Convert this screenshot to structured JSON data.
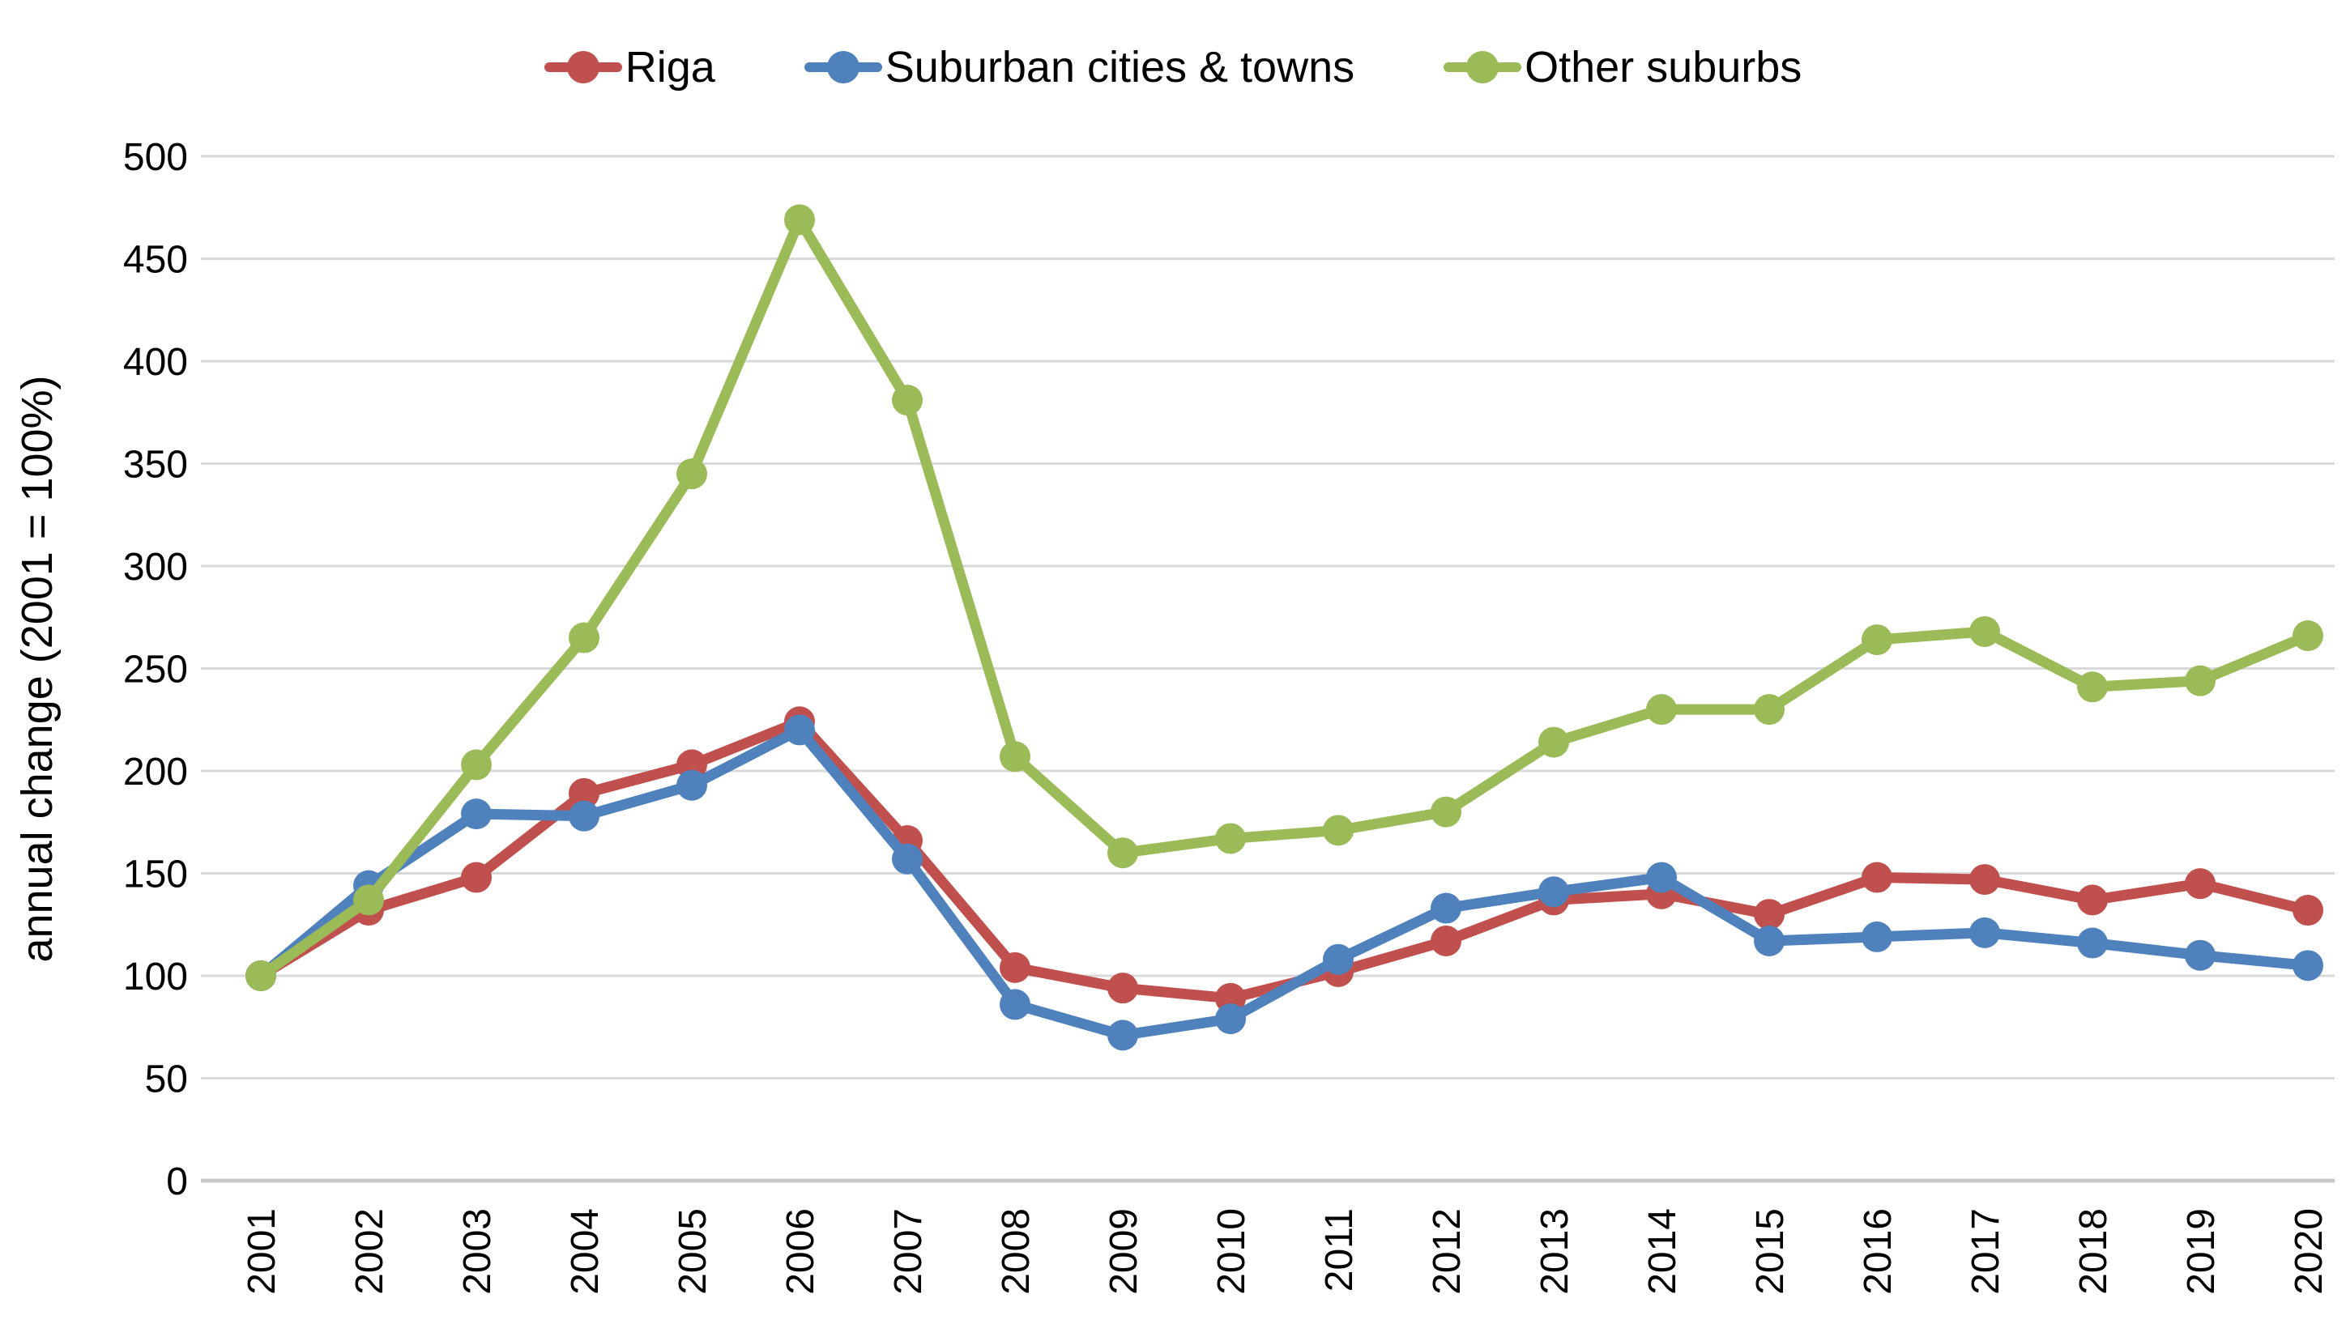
{
  "chart_data": {
    "type": "line",
    "title": "",
    "xlabel": "",
    "ylabel": "annual change (2001 = 100%)",
    "x": [
      "2001",
      "2002",
      "2003",
      "2004",
      "2005",
      "2006",
      "2007",
      "2008",
      "2009",
      "2010",
      "2011",
      "2012",
      "2013",
      "2014",
      "2015",
      "2016",
      "2017",
      "2018",
      "2019",
      "2020"
    ],
    "ylim": [
      0,
      500
    ],
    "yticks": [
      0,
      50,
      100,
      150,
      200,
      250,
      300,
      350,
      400,
      450,
      500
    ],
    "grid": "horizontal",
    "legend_position": "top-center",
    "series": [
      {
        "name": "Riga",
        "color": "#C0504D",
        "values": [
          100,
          132,
          148,
          189,
          203,
          224,
          166,
          104,
          94,
          89,
          102,
          117,
          137,
          140,
          130,
          148,
          147,
          137,
          145,
          132
        ]
      },
      {
        "name": "Suburban cities & towns",
        "color": "#4F81BD",
        "values": [
          100,
          144,
          179,
          178,
          193,
          220,
          157,
          86,
          71,
          79,
          108,
          133,
          141,
          148,
          117,
          119,
          121,
          116,
          110,
          105
        ]
      },
      {
        "name": "Other suburbs",
        "color": "#9BBB59",
        "values": [
          100,
          137,
          203,
          265,
          345,
          469,
          381,
          207,
          160,
          167,
          171,
          180,
          214,
          230,
          230,
          264,
          268,
          241,
          244,
          266
        ]
      }
    ]
  },
  "colors": {
    "background": "#FFFFFF",
    "gridline": "#D9D9D9",
    "axis_line": "#C8C8C8",
    "text": "#000000"
  }
}
